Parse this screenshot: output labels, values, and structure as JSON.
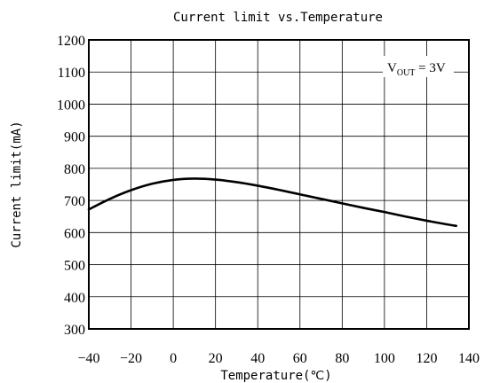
{
  "chart_data": {
    "type": "line",
    "title": "Current limit vs.Temperature",
    "xlabel": "Temperature(℃)",
    "ylabel": "Current limit(mA)",
    "xlim": [
      -40,
      140
    ],
    "ylim": [
      300,
      1200
    ],
    "xticks": [
      -40,
      -20,
      0,
      20,
      40,
      60,
      80,
      100,
      120,
      140
    ],
    "yticks": [
      300,
      400,
      500,
      600,
      700,
      800,
      900,
      1000,
      1100,
      1200
    ],
    "grid": true,
    "annotation": {
      "main": "V",
      "sub": "OUT",
      "rest": " = 3V"
    },
    "series": [
      {
        "x": [
          -40,
          -30,
          -20,
          -10,
          0,
          10,
          20,
          30,
          40,
          50,
          60,
          70,
          80,
          90,
          100,
          110,
          120,
          130,
          134
        ],
        "y": [
          672,
          705,
          732,
          752,
          764,
          768,
          765,
          757,
          746,
          733,
          719,
          705,
          691,
          677,
          664,
          650,
          637,
          625,
          621
        ]
      }
    ]
  }
}
